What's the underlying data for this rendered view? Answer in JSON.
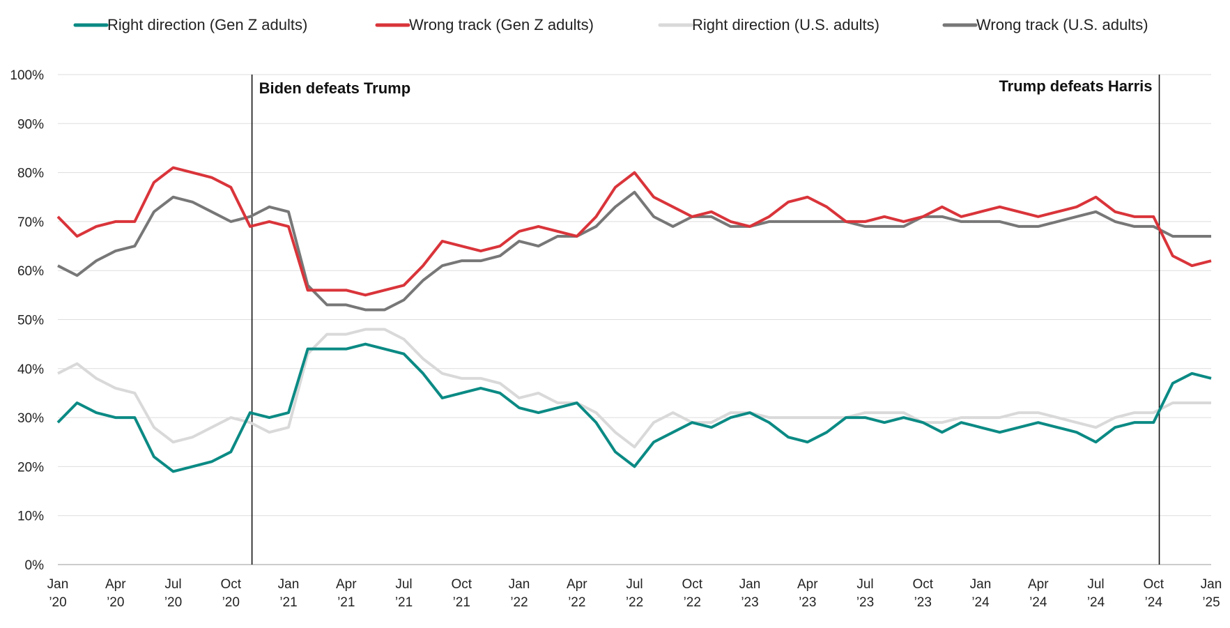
{
  "chart_data": {
    "type": "line",
    "title": "",
    "xlabel": "",
    "ylabel": "",
    "ylim": [
      0,
      100
    ],
    "y_ticks": [
      "0%",
      "10%",
      "20%",
      "30%",
      "40%",
      "50%",
      "60%",
      "70%",
      "80%",
      "90%",
      "100%"
    ],
    "x_ticks": [
      {
        "month": "Jan",
        "year": "’20",
        "index": 0
      },
      {
        "month": "Apr",
        "year": "’20",
        "index": 3
      },
      {
        "month": "Jul",
        "year": "’20",
        "index": 6
      },
      {
        "month": "Oct",
        "year": "’20",
        "index": 9
      },
      {
        "month": "Jan",
        "year": "’21",
        "index": 12
      },
      {
        "month": "Apr",
        "year": "’21",
        "index": 15
      },
      {
        "month": "Jul",
        "year": "’21",
        "index": 18
      },
      {
        "month": "Oct",
        "year": "’21",
        "index": 21
      },
      {
        "month": "Jan",
        "year": "’22",
        "index": 24
      },
      {
        "month": "Apr",
        "year": "’22",
        "index": 27
      },
      {
        "month": "Jul",
        "year": "’22",
        "index": 30
      },
      {
        "month": "Oct",
        "year": "’22",
        "index": 33
      },
      {
        "month": "Jan",
        "year": "’23",
        "index": 36
      },
      {
        "month": "Apr",
        "year": "’23",
        "index": 39
      },
      {
        "month": "Jul",
        "year": "’23",
        "index": 42
      },
      {
        "month": "Oct",
        "year": "’23",
        "index": 45
      },
      {
        "month": "Jan",
        "year": "’24",
        "index": 48
      },
      {
        "month": "Apr",
        "year": "’24",
        "index": 51
      },
      {
        "month": "Jul",
        "year": "’24",
        "index": 54
      },
      {
        "month": "Oct",
        "year": "’24",
        "index": 57
      },
      {
        "month": "Jan",
        "year": "’25",
        "index": 60
      }
    ],
    "grid": true,
    "legend_position": "top",
    "annotations": [
      {
        "label": "Biden defeats Trump",
        "x": 10.1,
        "label_side": "right"
      },
      {
        "label": "Trump defeats Harris",
        "x": 57.3,
        "label_side": "left"
      }
    ],
    "series": [
      {
        "name": "Right direction (Gen Z adults)",
        "color": "#0b8a84",
        "values": [
          29,
          33,
          31,
          30,
          30,
          22,
          19,
          20,
          21,
          23,
          31,
          30,
          31,
          44,
          44,
          44,
          45,
          44,
          43,
          39,
          34,
          35,
          36,
          35,
          32,
          31,
          32,
          33,
          29,
          23,
          20,
          25,
          27,
          29,
          28,
          30,
          31,
          29,
          26,
          25,
          27,
          30,
          30,
          29,
          30,
          29,
          27,
          29,
          28,
          27,
          28,
          29,
          28,
          27,
          25,
          28,
          29,
          29,
          37,
          39,
          38
        ]
      },
      {
        "name": "Wrong track (Gen Z adults)",
        "color": "#d9343a",
        "values": [
          71,
          67,
          69,
          70,
          70,
          78,
          81,
          80,
          79,
          77,
          69,
          70,
          69,
          56,
          56,
          56,
          55,
          56,
          57,
          61,
          66,
          65,
          64,
          65,
          68,
          69,
          68,
          67,
          71,
          77,
          80,
          75,
          73,
          71,
          72,
          70,
          69,
          71,
          74,
          75,
          73,
          70,
          70,
          71,
          70,
          71,
          73,
          71,
          72,
          73,
          72,
          71,
          72,
          73,
          75,
          72,
          71,
          71,
          63,
          61,
          62
        ]
      },
      {
        "name": "Right direction (U.S. adults)",
        "color": "#d9d9d9",
        "values": [
          39,
          41,
          38,
          36,
          35,
          28,
          25,
          26,
          28,
          30,
          29,
          27,
          28,
          43,
          47,
          47,
          48,
          48,
          46,
          42,
          39,
          38,
          38,
          37,
          34,
          35,
          33,
          33,
          31,
          27,
          24,
          29,
          31,
          29,
          29,
          31,
          31,
          30,
          30,
          30,
          30,
          30,
          31,
          31,
          31,
          29,
          29,
          30,
          30,
          30,
          31,
          31,
          30,
          29,
          28,
          30,
          31,
          31,
          33,
          33,
          33
        ]
      },
      {
        "name": "Wrong track (U.S. adults)",
        "color": "#777777",
        "values": [
          61,
          59,
          62,
          64,
          65,
          72,
          75,
          74,
          72,
          70,
          71,
          73,
          72,
          57,
          53,
          53,
          52,
          52,
          54,
          58,
          61,
          62,
          62,
          63,
          66,
          65,
          67,
          67,
          69,
          73,
          76,
          71,
          69,
          71,
          71,
          69,
          69,
          70,
          70,
          70,
          70,
          70,
          69,
          69,
          69,
          71,
          71,
          70,
          70,
          70,
          69,
          69,
          70,
          71,
          72,
          70,
          69,
          69,
          67,
          67,
          67
        ]
      }
    ]
  }
}
